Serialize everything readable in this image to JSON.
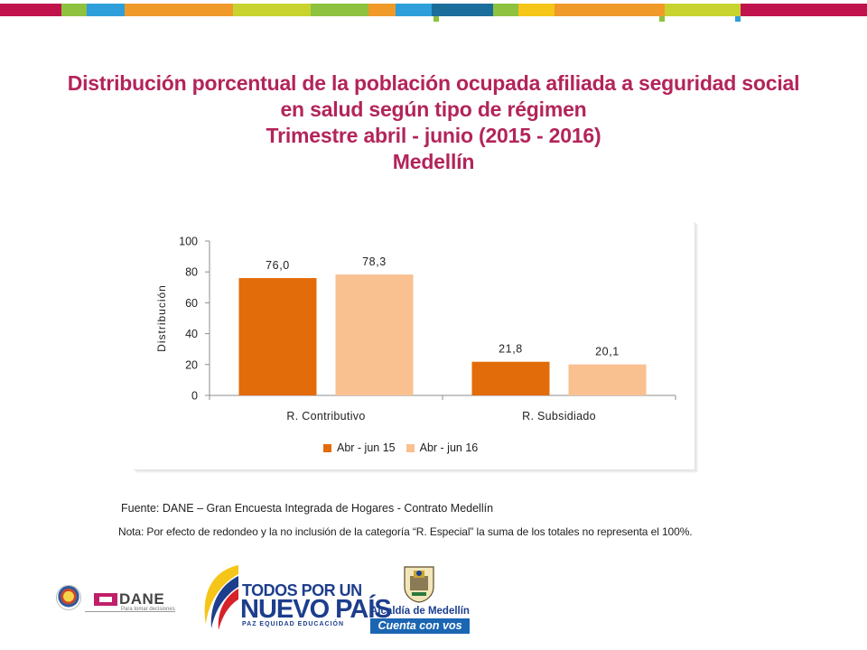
{
  "slide": {
    "title_lines": [
      "Distribución porcentual de la población ocupada afiliada a seguridad social",
      "en salud según tipo de régimen",
      "Trimestre abril - junio (2015 - 2016)",
      "Medellín"
    ],
    "source": "Fuente: DANE – Gran Encuesta Integrada de Hogares - Contrato Medellín",
    "note": "Nota: Por efecto de redondeo y la no inclusión de la categoría “R. Especial” la suma  de los totales  no representa el 100%."
  },
  "footer": {
    "dane_name": "DANE",
    "dane_tagline": "Para tomar decisiones",
    "todos_line1": "TODOS POR UN",
    "todos_line2": "NUEVO PAÍS",
    "todos_line3": "PAZ  EQUIDAD  EDUCACIÓN",
    "alcaldia_line1": "Alcaldía de Medellín",
    "alcaldia_line2": "Cuenta con vos"
  },
  "colors": {
    "title": "#b3245a",
    "series_2015": "#e36c0a",
    "series_2016": "#f9c090",
    "top_bar": [
      "#c0134e",
      "#8ec23f",
      "#2e9fda",
      "#f09a2a",
      "#c8d330",
      "#1b6e9c"
    ]
  },
  "chart_data": {
    "type": "bar",
    "title": "",
    "xlabel": "",
    "ylabel": "Distribución",
    "ylim": [
      0,
      100
    ],
    "yticks": [
      0,
      20,
      40,
      60,
      80,
      100
    ],
    "grid": false,
    "legend_position": "bottom",
    "categories": [
      "R. Contributivo",
      "R. Subsidiado"
    ],
    "series": [
      {
        "name": "Abr - jun 15",
        "values": [
          76.0,
          21.8
        ],
        "labels": [
          "76,0",
          "21,8"
        ]
      },
      {
        "name": "Abr - jun 16",
        "values": [
          78.3,
          20.1
        ],
        "labels": [
          "78,3",
          "20,1"
        ]
      }
    ]
  }
}
